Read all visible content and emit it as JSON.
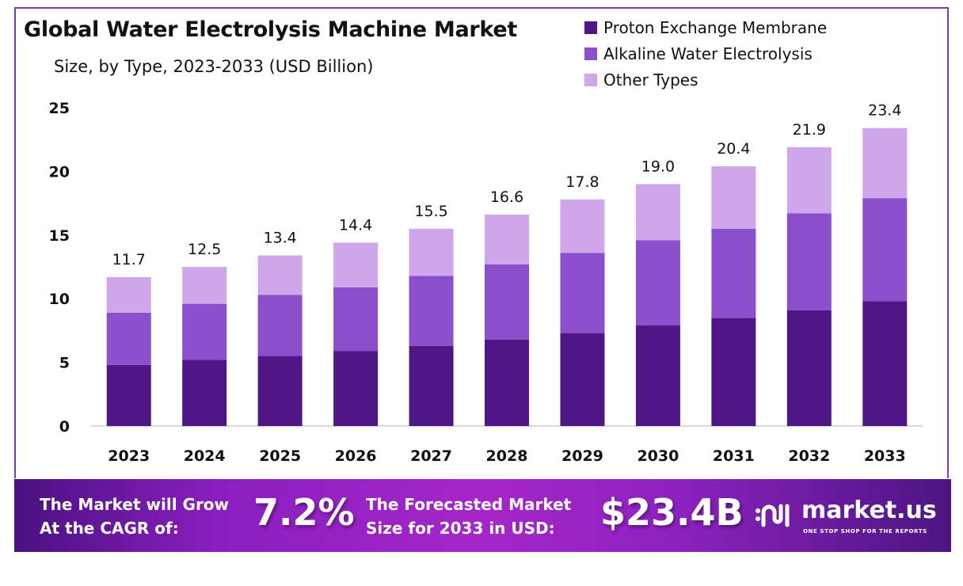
{
  "chart_data": {
    "type": "bar",
    "stacked": true,
    "title": "Global Water Electrolysis Machine Market",
    "subtitle": "Size, by Type, 2023-2033 (USD Billion)",
    "xlabel": "",
    "ylabel": "",
    "ylim": [
      0,
      25
    ],
    "yticks": [
      0,
      5,
      10,
      15,
      20,
      25
    ],
    "grid": false,
    "legend_position": "top-right",
    "categories": [
      "2023",
      "2024",
      "2025",
      "2026",
      "2027",
      "2028",
      "2029",
      "2030",
      "2031",
      "2032",
      "2033"
    ],
    "series": [
      {
        "name": "Proton Exchange Membrane",
        "color": "#4f1786",
        "values": [
          4.8,
          5.2,
          5.5,
          5.9,
          6.3,
          6.8,
          7.3,
          7.9,
          8.5,
          9.1,
          9.8
        ]
      },
      {
        "name": "Alkaline Water Electrolysis",
        "color": "#8b4fcc",
        "values": [
          4.1,
          4.4,
          4.8,
          5.0,
          5.5,
          5.9,
          6.3,
          6.7,
          7.0,
          7.6,
          8.1
        ]
      },
      {
        "name": "Other Types",
        "color": "#cfa6ea",
        "values": [
          2.8,
          2.9,
          3.1,
          3.5,
          3.7,
          3.9,
          4.2,
          4.4,
          4.9,
          5.2,
          5.5
        ]
      }
    ],
    "totals": [
      "11.7",
      "12.5",
      "13.4",
      "14.4",
      "15.5",
      "16.6",
      "17.8",
      "19.0",
      "20.4",
      "21.9",
      "23.4"
    ]
  },
  "banner": {
    "cagr_text_line1": "The Market will Grow",
    "cagr_text_line2": "At the CAGR of:",
    "cagr_value": "7.2%",
    "forecast_text_line1": "The Forecasted Market",
    "forecast_text_line2": "Size for 2033 in USD:",
    "forecast_value": "$23.4B",
    "logo_name": "market.us",
    "logo_tagline": "ONE STOP SHOP FOR THE REPORTS",
    "logo_icon": "market-us-logo-icon"
  }
}
